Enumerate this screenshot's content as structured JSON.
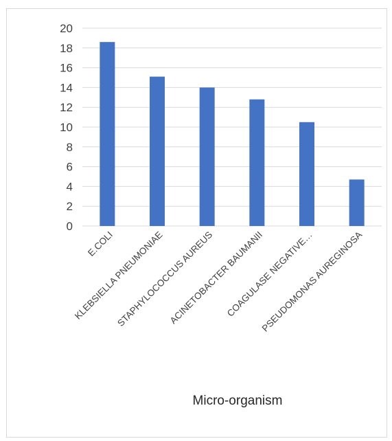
{
  "chart_data": {
    "type": "bar",
    "title": "",
    "xlabel": "Micro-organism",
    "ylabel": "",
    "categories": [
      "E.COLI",
      "KLEBSIELLA PNEUMONIAE",
      "STAPHYLOCOCCUS AUREUS",
      "ACINETOBACTER BAUMANII",
      "COAGULASE NEGATIVE…",
      "PSEUDOMONAS AUREGINOSA"
    ],
    "values": [
      18.6,
      15.1,
      14.0,
      12.8,
      10.5,
      4.7
    ],
    "ylim": [
      0,
      20
    ],
    "yticks": [
      0,
      2,
      4,
      6,
      8,
      10,
      12,
      14,
      16,
      18,
      20
    ],
    "grid": true,
    "legend": "none",
    "colors": {
      "bar": "#4472c4",
      "grid": "#d9d9d9"
    }
  }
}
